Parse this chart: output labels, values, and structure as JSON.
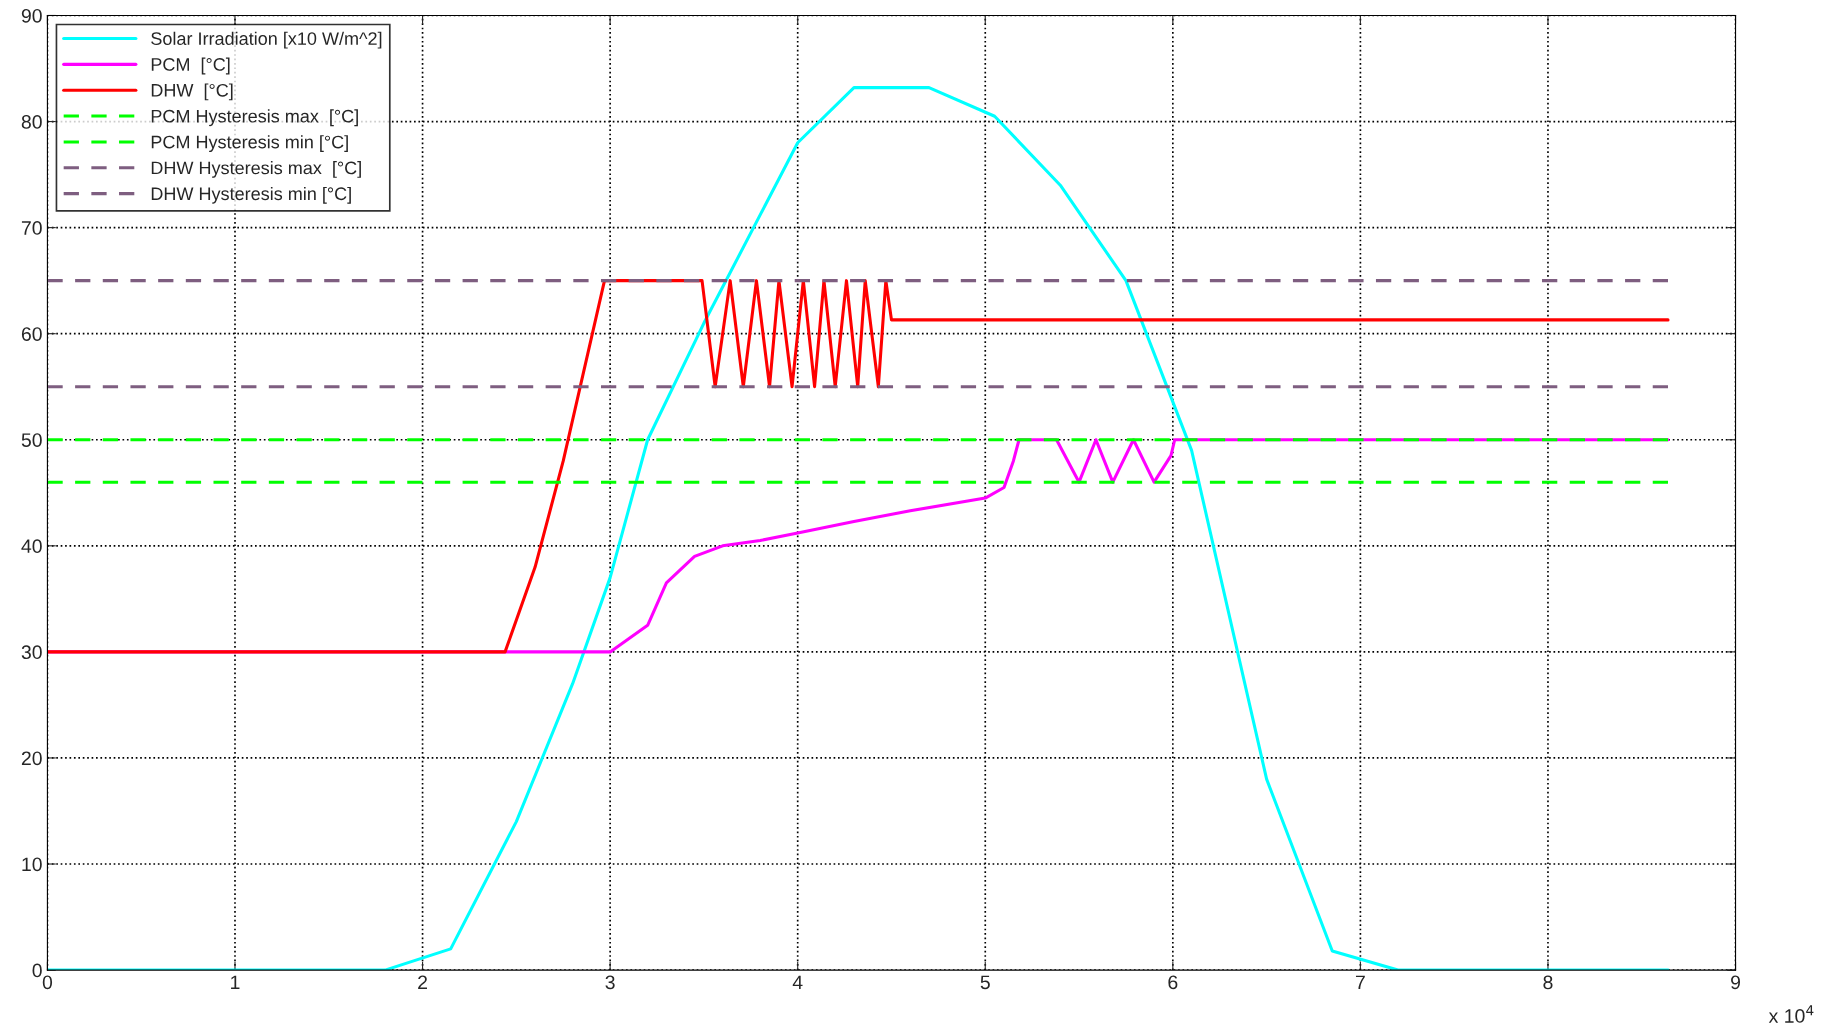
{
  "chart_data": {
    "type": "line",
    "annotations": [
      "x 10$^{4}$"
    ],
    "xlim": [
      0,
      9
    ],
    "xticks": [
      0,
      1,
      2,
      3,
      4,
      5,
      6,
      7,
      8,
      9
    ],
    "ylim": [
      0,
      90
    ],
    "yticks": [
      0,
      10,
      20,
      30,
      40,
      50,
      60,
      70,
      80,
      90
    ],
    "grid": true,
    "legend": "top left",
    "line_style": "solid",
    "marker": "none",
    "series": [
      {
        "name": "Solar Irradiation [x10 W/m^2]",
        "color": "#00ffff",
        "x": [
          0,
          1.8,
          2.15,
          2.5,
          2.8,
          3.0,
          3.2,
          3.5,
          4.0,
          4.3,
          4.7,
          5.05,
          5.4,
          5.75,
          6.1,
          6.5,
          6.85,
          7.2,
          8.64
        ],
        "values": [
          0,
          0,
          2,
          14,
          27,
          37,
          50,
          61,
          78,
          83.2,
          83.2,
          80.5,
          74,
          65,
          49,
          18,
          1.8,
          0,
          0
        ]
      },
      {
        "name": "PCM  [°C]",
        "color": "#ff00ff",
        "x": [
          0,
          3.0,
          3.2,
          3.3,
          3.45,
          3.6,
          3.8,
          4.0,
          4.3,
          4.6,
          5.0,
          5.1,
          5.15,
          5.18,
          5.38,
          5.5,
          5.59,
          5.68,
          5.79,
          5.9,
          5.99,
          6.01,
          8.64
        ],
        "values": [
          30,
          30,
          32.5,
          36.5,
          39,
          40,
          40.5,
          41.2,
          42.3,
          43.3,
          44.5,
          45.5,
          48,
          50,
          50,
          46,
          50,
          46,
          50,
          46,
          48.5,
          50,
          50
        ]
      },
      {
        "name": "DHW  [°C]",
        "color": "#ff0000",
        "x": [
          0,
          2.44,
          2.6,
          2.75,
          2.97,
          3.49,
          3.56,
          3.64,
          3.71,
          3.78,
          3.85,
          3.9,
          3.97,
          4.03,
          4.09,
          4.14,
          4.2,
          4.26,
          4.32,
          4.36,
          4.43,
          4.47,
          4.5,
          8.64
        ],
        "values": [
          30,
          30,
          38,
          48,
          65,
          65,
          55,
          65,
          55,
          65,
          55,
          65,
          55,
          65,
          55,
          65,
          55,
          65,
          55,
          65,
          55,
          65,
          61.3,
          61.3
        ]
      },
      {
        "name": "PCM Hysteresis max  [°C]",
        "color": "#00ff00",
        "line_style": "dashed",
        "x": [
          0,
          8.64
        ],
        "values": [
          50,
          50
        ]
      },
      {
        "name": "PCM Hysteresis min [°C]",
        "color": "#00ff00",
        "line_style": "dashed",
        "x": [
          0,
          8.64
        ],
        "values": [
          46,
          46
        ]
      },
      {
        "name": "DHW Hysteresis max  [°C]",
        "color": "#7e5e80",
        "line_style": "dashed",
        "x": [
          0,
          8.64
        ],
        "values": [
          65,
          65
        ]
      },
      {
        "name": "DHW Hysteresis min [°C]",
        "color": "#7e5e80",
        "line_style": "dashed",
        "x": [
          0,
          8.64
        ],
        "values": [
          55,
          55
        ]
      }
    ]
  }
}
